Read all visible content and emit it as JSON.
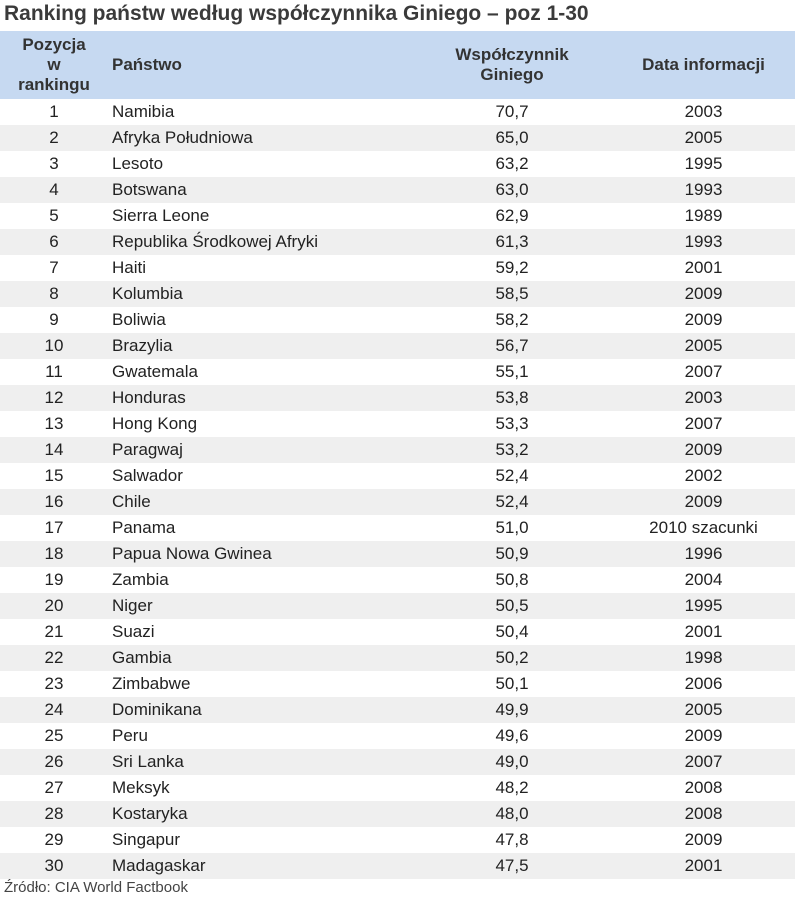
{
  "title": "Ranking państw według współczynnika Giniego – poz 1-30",
  "table": {
    "header": [
      "Pozycja w rankingu",
      "Państwo",
      "Współczynnik Giniego",
      "Data informacji"
    ],
    "rows": [
      [
        "1",
        "Namibia",
        "70,7",
        "2003"
      ],
      [
        "2",
        "Afryka Południowa",
        "65,0",
        "2005"
      ],
      [
        "3",
        "Lesoto",
        "63,2",
        "1995"
      ],
      [
        "4",
        "Botswana",
        "63,0",
        "1993"
      ],
      [
        "5",
        "Sierra Leone",
        "62,9",
        "1989"
      ],
      [
        "6",
        "Republika Środkowej Afryki",
        "61,3",
        "1993"
      ],
      [
        "7",
        "Haiti",
        "59,2",
        "2001"
      ],
      [
        "8",
        "Kolumbia",
        "58,5",
        "2009"
      ],
      [
        "9",
        "Boliwia",
        "58,2",
        "2009"
      ],
      [
        "10",
        "Brazylia",
        "56,7",
        "2005"
      ],
      [
        "11",
        "Gwatemala",
        "55,1",
        "2007"
      ],
      [
        "12",
        "Honduras",
        "53,8",
        "2003"
      ],
      [
        "13",
        "Hong Kong",
        "53,3",
        "2007"
      ],
      [
        "14",
        "Paragwaj",
        "53,2",
        "2009"
      ],
      [
        "15",
        "Salwador",
        "52,4",
        "2002"
      ],
      [
        "16",
        "Chile",
        "52,4",
        "2009"
      ],
      [
        "17",
        "Panama",
        "51,0",
        "2010 szacunki"
      ],
      [
        "18",
        "Papua Nowa Gwinea",
        "50,9",
        "1996"
      ],
      [
        "19",
        "Zambia",
        "50,8",
        "2004"
      ],
      [
        "20",
        "Niger",
        "50,5",
        "1995"
      ],
      [
        "21",
        "Suazi",
        "50,4",
        "2001"
      ],
      [
        "22",
        "Gambia",
        "50,2",
        "1998"
      ],
      [
        "23",
        "Zimbabwe",
        "50,1",
        "2006"
      ],
      [
        "24",
        "Dominikana",
        "49,9",
        "2005"
      ],
      [
        "25",
        "Peru",
        "49,6",
        "2009"
      ],
      [
        "26",
        "Sri Lanka",
        "49,0",
        "2007"
      ],
      [
        "27",
        "Meksyk",
        "48,2",
        "2008"
      ],
      [
        "28",
        "Kostaryka",
        "48,0",
        "2008"
      ],
      [
        "29",
        "Singapur",
        "47,8",
        "2009"
      ],
      [
        "30",
        "Madagaskar",
        "47,5",
        "2001"
      ]
    ]
  },
  "source": "Źródło: CIA World Factbook"
}
